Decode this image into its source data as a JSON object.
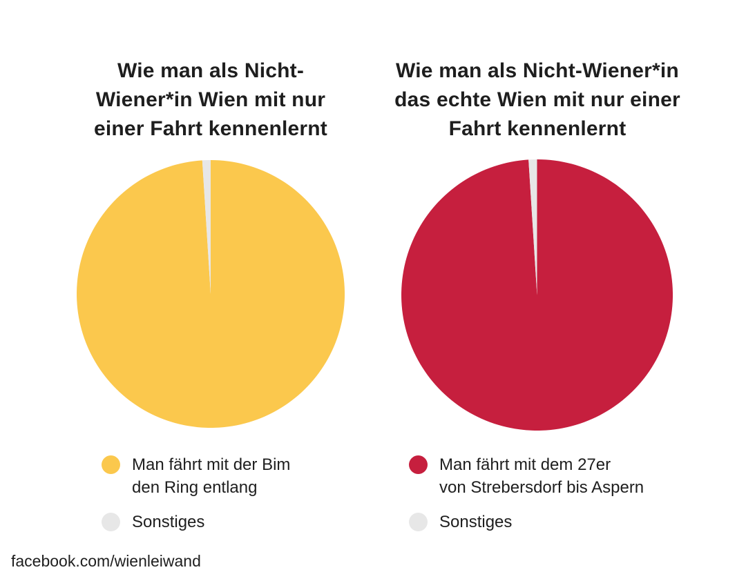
{
  "page": {
    "background": "#FFFFFF",
    "text_color": "#1E1E1E",
    "footer_text": "facebook.com/wienleiwand"
  },
  "chart_data": [
    {
      "type": "pie",
      "title": "Wie man als Nicht-\nWiener*in Wien mit nur\neiner Fahrt kennenlernt",
      "slices": [
        {
          "label": "Man fährt mit der Bim\nden Ring entlang",
          "value": 99,
          "color": "#FBC84D"
        },
        {
          "label": "Sonstiges",
          "value": 1,
          "color": "#E7E7E7"
        }
      ],
      "start_angle_deg": 0,
      "direction": "clockwise",
      "legend_position": "bottom-left"
    },
    {
      "type": "pie",
      "title": "Wie man als Nicht-Wiener*in\ndas echte Wien mit nur einer\nFahrt kennenlernt",
      "slices": [
        {
          "label": "Man fährt mit dem 27er\nvon Strebersdorf bis Aspern",
          "value": 99,
          "color": "#C61F3E"
        },
        {
          "label": "Sonstiges",
          "value": 1,
          "color": "#E7E7E7"
        }
      ],
      "start_angle_deg": 0,
      "direction": "clockwise",
      "legend_position": "bottom-left"
    }
  ]
}
